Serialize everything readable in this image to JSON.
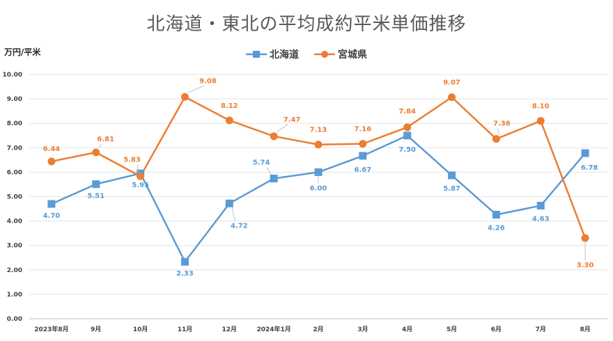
{
  "chart_data": {
    "type": "line",
    "title": "北海道・東北の平均成約平米単価推移",
    "ylabel": "万円/平米",
    "xlabel": "",
    "categories": [
      "2023年8月",
      "9月",
      "10月",
      "11月",
      "12月",
      "2024年1月",
      "2月",
      "3月",
      "4月",
      "5月",
      "6月",
      "7月",
      "8月"
    ],
    "ylim": [
      0,
      10
    ],
    "yticks": [
      "0.00",
      "1.00",
      "2.00",
      "3.00",
      "4.00",
      "5.00",
      "6.00",
      "7.00",
      "8.00",
      "9.00",
      "10.00"
    ],
    "grid": true,
    "legend_position": "top",
    "series": [
      {
        "name": "北海道",
        "color": "#5b9bd5",
        "marker": "square",
        "values": [
          4.7,
          5.51,
          5.95,
          2.33,
          4.72,
          5.74,
          6.0,
          6.67,
          7.5,
          5.87,
          4.26,
          4.63,
          6.78
        ],
        "labels": [
          "4.70",
          "5.51",
          "5.95",
          "2.33",
          "4.72",
          "5.74",
          "6.00",
          "6.67",
          "7.50",
          "5.87",
          "4.26",
          "4.63",
          "6.78"
        ]
      },
      {
        "name": "宮城県",
        "color": "#ed7d31",
        "marker": "circle",
        "values": [
          6.44,
          6.81,
          5.83,
          9.08,
          8.12,
          7.47,
          7.13,
          7.16,
          7.84,
          9.07,
          7.36,
          8.1,
          3.3
        ],
        "labels": [
          "6.44",
          "6.81",
          "5.83",
          "9.08",
          "8.12",
          "7.47",
          "7.13",
          "7.16",
          "7.84",
          "9.07",
          "7.36",
          "8.10",
          "3.30"
        ]
      }
    ]
  }
}
